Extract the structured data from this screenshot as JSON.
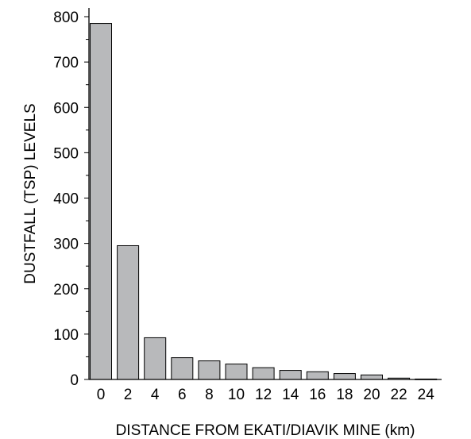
{
  "chart_data": {
    "type": "bar",
    "categories": [
      "0",
      "2",
      "4",
      "6",
      "8",
      "10",
      "12",
      "14",
      "16",
      "18",
      "20",
      "22",
      "24"
    ],
    "values": [
      785,
      295,
      92,
      48,
      41,
      34,
      26,
      20,
      17,
      13,
      10,
      3,
      1
    ],
    "xlabel": "DISTANCE FROM EKATI/DIAVIK MINE (km)",
    "ylabel": "DUSTFALL (TSP) LEVELS",
    "ylim": [
      0,
      800
    ],
    "yticks": [
      "0",
      "100",
      "200",
      "300",
      "400",
      "500",
      "600",
      "700",
      "800"
    ],
    "bar_color": "#b8b9bb",
    "bar_edge_color": "#000000",
    "grid": false,
    "legend": "none"
  }
}
